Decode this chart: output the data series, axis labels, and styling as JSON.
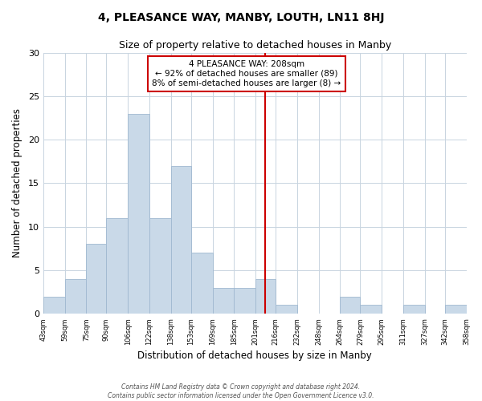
{
  "title": "4, PLEASANCE WAY, MANBY, LOUTH, LN11 8HJ",
  "subtitle": "Size of property relative to detached houses in Manby",
  "xlabel": "Distribution of detached houses by size in Manby",
  "ylabel": "Number of detached properties",
  "bar_edges": [
    43,
    59,
    75,
    90,
    106,
    122,
    138,
    153,
    169,
    185,
    201,
    216,
    232,
    248,
    264,
    279,
    295,
    311,
    327,
    342,
    358
  ],
  "bar_heights": [
    2,
    4,
    8,
    11,
    23,
    11,
    17,
    7,
    3,
    3,
    4,
    1,
    0,
    0,
    2,
    1,
    0,
    1,
    0,
    1
  ],
  "bar_color": "#c9d9e8",
  "bar_edge_color": "#a0b8d0",
  "property_line_x": 208,
  "property_line_color": "#cc0000",
  "ylim": [
    0,
    30
  ],
  "yticks": [
    0,
    5,
    10,
    15,
    20,
    25,
    30
  ],
  "annotation_title": "4 PLEASANCE WAY: 208sqm",
  "annotation_line1": "← 92% of detached houses are smaller (89)",
  "annotation_line2": "8% of semi-detached houses are larger (8) →",
  "annotation_box_color": "#ffffff",
  "annotation_box_edge_color": "#cc0000",
  "footer1": "Contains HM Land Registry data © Crown copyright and database right 2024.",
  "footer2": "Contains public sector information licensed under the Open Government Licence v3.0.",
  "background_color": "#ffffff",
  "grid_color": "#c8d4e0",
  "tick_labels": [
    "43sqm",
    "59sqm",
    "75sqm",
    "90sqm",
    "106sqm",
    "122sqm",
    "138sqm",
    "153sqm",
    "169sqm",
    "185sqm",
    "201sqm",
    "216sqm",
    "232sqm",
    "248sqm",
    "264sqm",
    "279sqm",
    "295sqm",
    "311sqm",
    "327sqm",
    "342sqm",
    "358sqm"
  ],
  "title_fontsize": 10,
  "subtitle_fontsize": 9,
  "xlabel_fontsize": 8.5,
  "ylabel_fontsize": 8.5,
  "xtick_fontsize": 6,
  "ytick_fontsize": 8,
  "annotation_fontsize": 7.5,
  "footer_fontsize": 5.5
}
